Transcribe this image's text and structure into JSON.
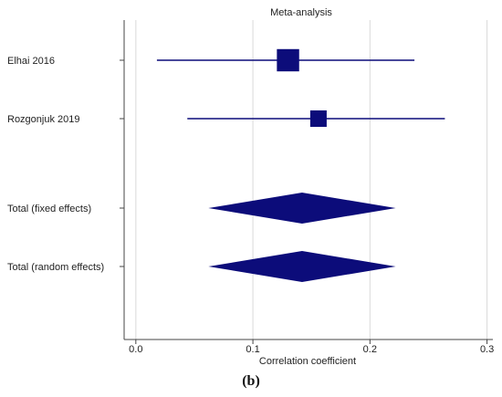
{
  "chart_data": {
    "type": "forest",
    "title": "Meta-analysis",
    "xlabel": "Correlation coefficient",
    "xlim": [
      -0.01,
      0.305
    ],
    "x_ticks": [
      0.0,
      0.1,
      0.2,
      0.3
    ],
    "x_tick_labels": [
      "0.0",
      "0.1",
      "0.2",
      "0.3"
    ],
    "grid": true,
    "studies": [
      {
        "label": "Elhai 2016",
        "estimate": 0.13,
        "ci_low": 0.018,
        "ci_high": 0.238,
        "weight": 0.7
      },
      {
        "label": "Rozgonjuk 2019",
        "estimate": 0.156,
        "ci_low": 0.044,
        "ci_high": 0.264,
        "weight": 0.3
      }
    ],
    "totals": [
      {
        "label": "Total (fixed effects)",
        "estimate": 0.142,
        "ci_low": 0.062,
        "ci_high": 0.222
      },
      {
        "label": "Total (random effects)",
        "estimate": 0.142,
        "ci_low": 0.062,
        "ci_high": 0.222
      }
    ],
    "color": "#0c0c7a"
  },
  "figure": {
    "caption": "(b)"
  }
}
